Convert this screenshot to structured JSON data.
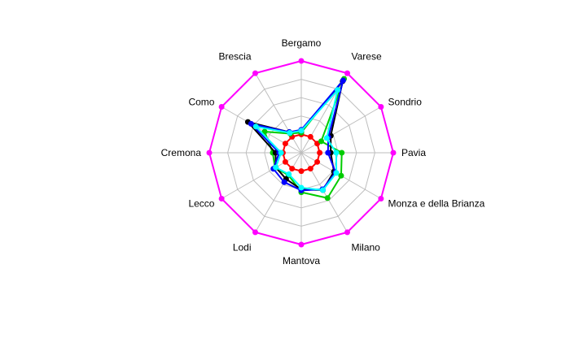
{
  "chart_data": {
    "type": "radar",
    "title": "",
    "axes": [
      "Bergamo",
      "Varese",
      "Sondrio",
      "Pavia",
      "Monza e della Brianza",
      "Milano",
      "Mantova",
      "Lodi",
      "Lecco",
      "Cremona",
      "Como",
      "Brescia"
    ],
    "rings": 5,
    "range": [
      0,
      5
    ],
    "grid_color": "#bebebe",
    "series": [
      {
        "color": "#ff00ff",
        "values": [
          5.0,
          5.0,
          5.0,
          5.0,
          5.0,
          5.0,
          5.0,
          5.0,
          5.0,
          5.0,
          5.0,
          5.0
        ]
      },
      {
        "color": "#ff0000",
        "values": [
          1.0,
          1.0,
          1.0,
          1.0,
          1.0,
          1.0,
          1.0,
          1.0,
          1.0,
          1.0,
          1.0,
          1.0
        ]
      },
      {
        "color": "#00cc00",
        "values": [
          1.1,
          4.65,
          1.25,
          2.2,
          2.5,
          2.85,
          2.15,
          1.4,
          1.65,
          1.55,
          2.3,
          1.2
        ]
      },
      {
        "color": "#000000",
        "values": [
          1.2,
          4.5,
          1.85,
          1.6,
          2.05,
          2.35,
          2.0,
          1.65,
          1.6,
          1.4,
          3.35,
          1.3
        ]
      },
      {
        "color": "#0000ff",
        "values": [
          1.25,
          4.55,
          1.7,
          1.45,
          2.15,
          2.3,
          2.05,
          1.85,
          1.75,
          1.2,
          3.15,
          1.3
        ]
      },
      {
        "color": "#00ffff",
        "values": [
          1.2,
          3.95,
          1.6,
          1.9,
          2.2,
          2.35,
          1.9,
          1.35,
          1.6,
          1.1,
          2.85,
          1.25
        ]
      }
    ]
  }
}
